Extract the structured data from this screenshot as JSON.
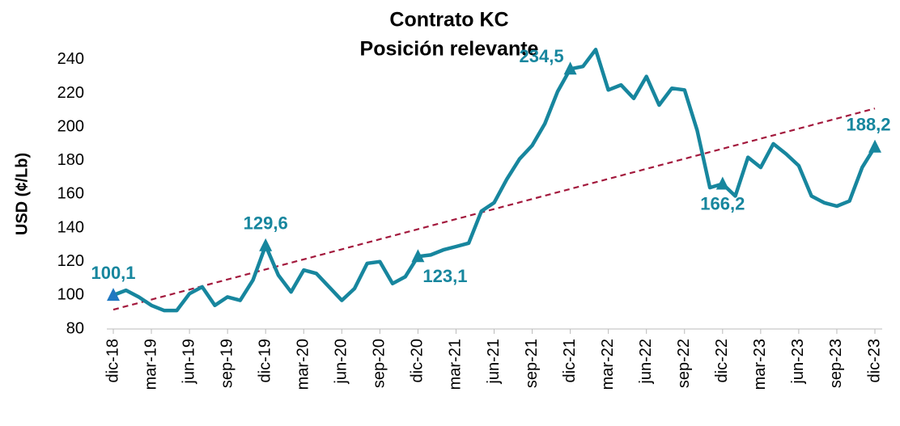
{
  "chart_data": {
    "type": "line",
    "title": [
      "Contrato KC",
      "Posición relevante"
    ],
    "y_label": "USD (¢/Lb)",
    "categories": [
      "dic-18",
      null,
      null,
      "mar-19",
      null,
      null,
      "jun-19",
      null,
      null,
      "sep-19",
      null,
      null,
      "dic-19",
      null,
      null,
      "mar-20",
      null,
      null,
      "jun-20",
      null,
      null,
      "sep-20",
      null,
      null,
      "dic-20",
      null,
      null,
      "mar-21",
      null,
      null,
      "jun-21",
      null,
      null,
      "sep-21",
      null,
      null,
      "dic-21",
      null,
      null,
      "mar-22",
      null,
      null,
      "jun-22",
      null,
      null,
      "sep-22",
      null,
      null,
      "dic-22",
      null,
      null,
      "mar-23",
      null,
      null,
      "jun-23",
      null,
      null,
      "sep-23",
      null,
      null,
      "dic-23"
    ],
    "series": [
      {
        "color": "#17869e",
        "values": [
          100.1,
          103,
          99,
          94,
          91,
          91,
          101,
          105,
          94,
          99,
          97,
          109,
          129.6,
          112,
          102,
          115,
          113,
          105,
          97,
          104,
          119,
          120,
          107,
          111,
          123.1,
          124,
          127,
          129,
          131,
          150,
          155,
          169,
          181,
          189,
          202,
          221,
          234.5,
          236,
          246,
          222,
          225,
          217,
          230,
          213,
          223,
          222,
          198,
          164,
          166.2,
          159,
          182,
          176,
          190,
          184,
          177,
          159,
          155,
          153,
          156,
          176,
          188.2
        ],
        "value_labels": [
          "100,1",
          null,
          null,
          null,
          null,
          null,
          null,
          null,
          null,
          null,
          null,
          null,
          "129,6",
          null,
          null,
          null,
          null,
          null,
          null,
          null,
          null,
          null,
          null,
          null,
          "123,1",
          null,
          null,
          null,
          null,
          null,
          null,
          null,
          null,
          null,
          null,
          null,
          "234,5",
          null,
          null,
          null,
          null,
          null,
          null,
          null,
          null,
          null,
          null,
          null,
          "166,2",
          null,
          null,
          null,
          null,
          null,
          null,
          null,
          null,
          null,
          null,
          null,
          "188,2"
        ]
      }
    ],
    "trend": {
      "color": "#a3193d",
      "values": [
        91.5,
        211
      ]
    },
    "ylim": [
      80,
      250
    ],
    "yticks": [
      80,
      100,
      120,
      140,
      160,
      180,
      200,
      220,
      240
    ]
  }
}
